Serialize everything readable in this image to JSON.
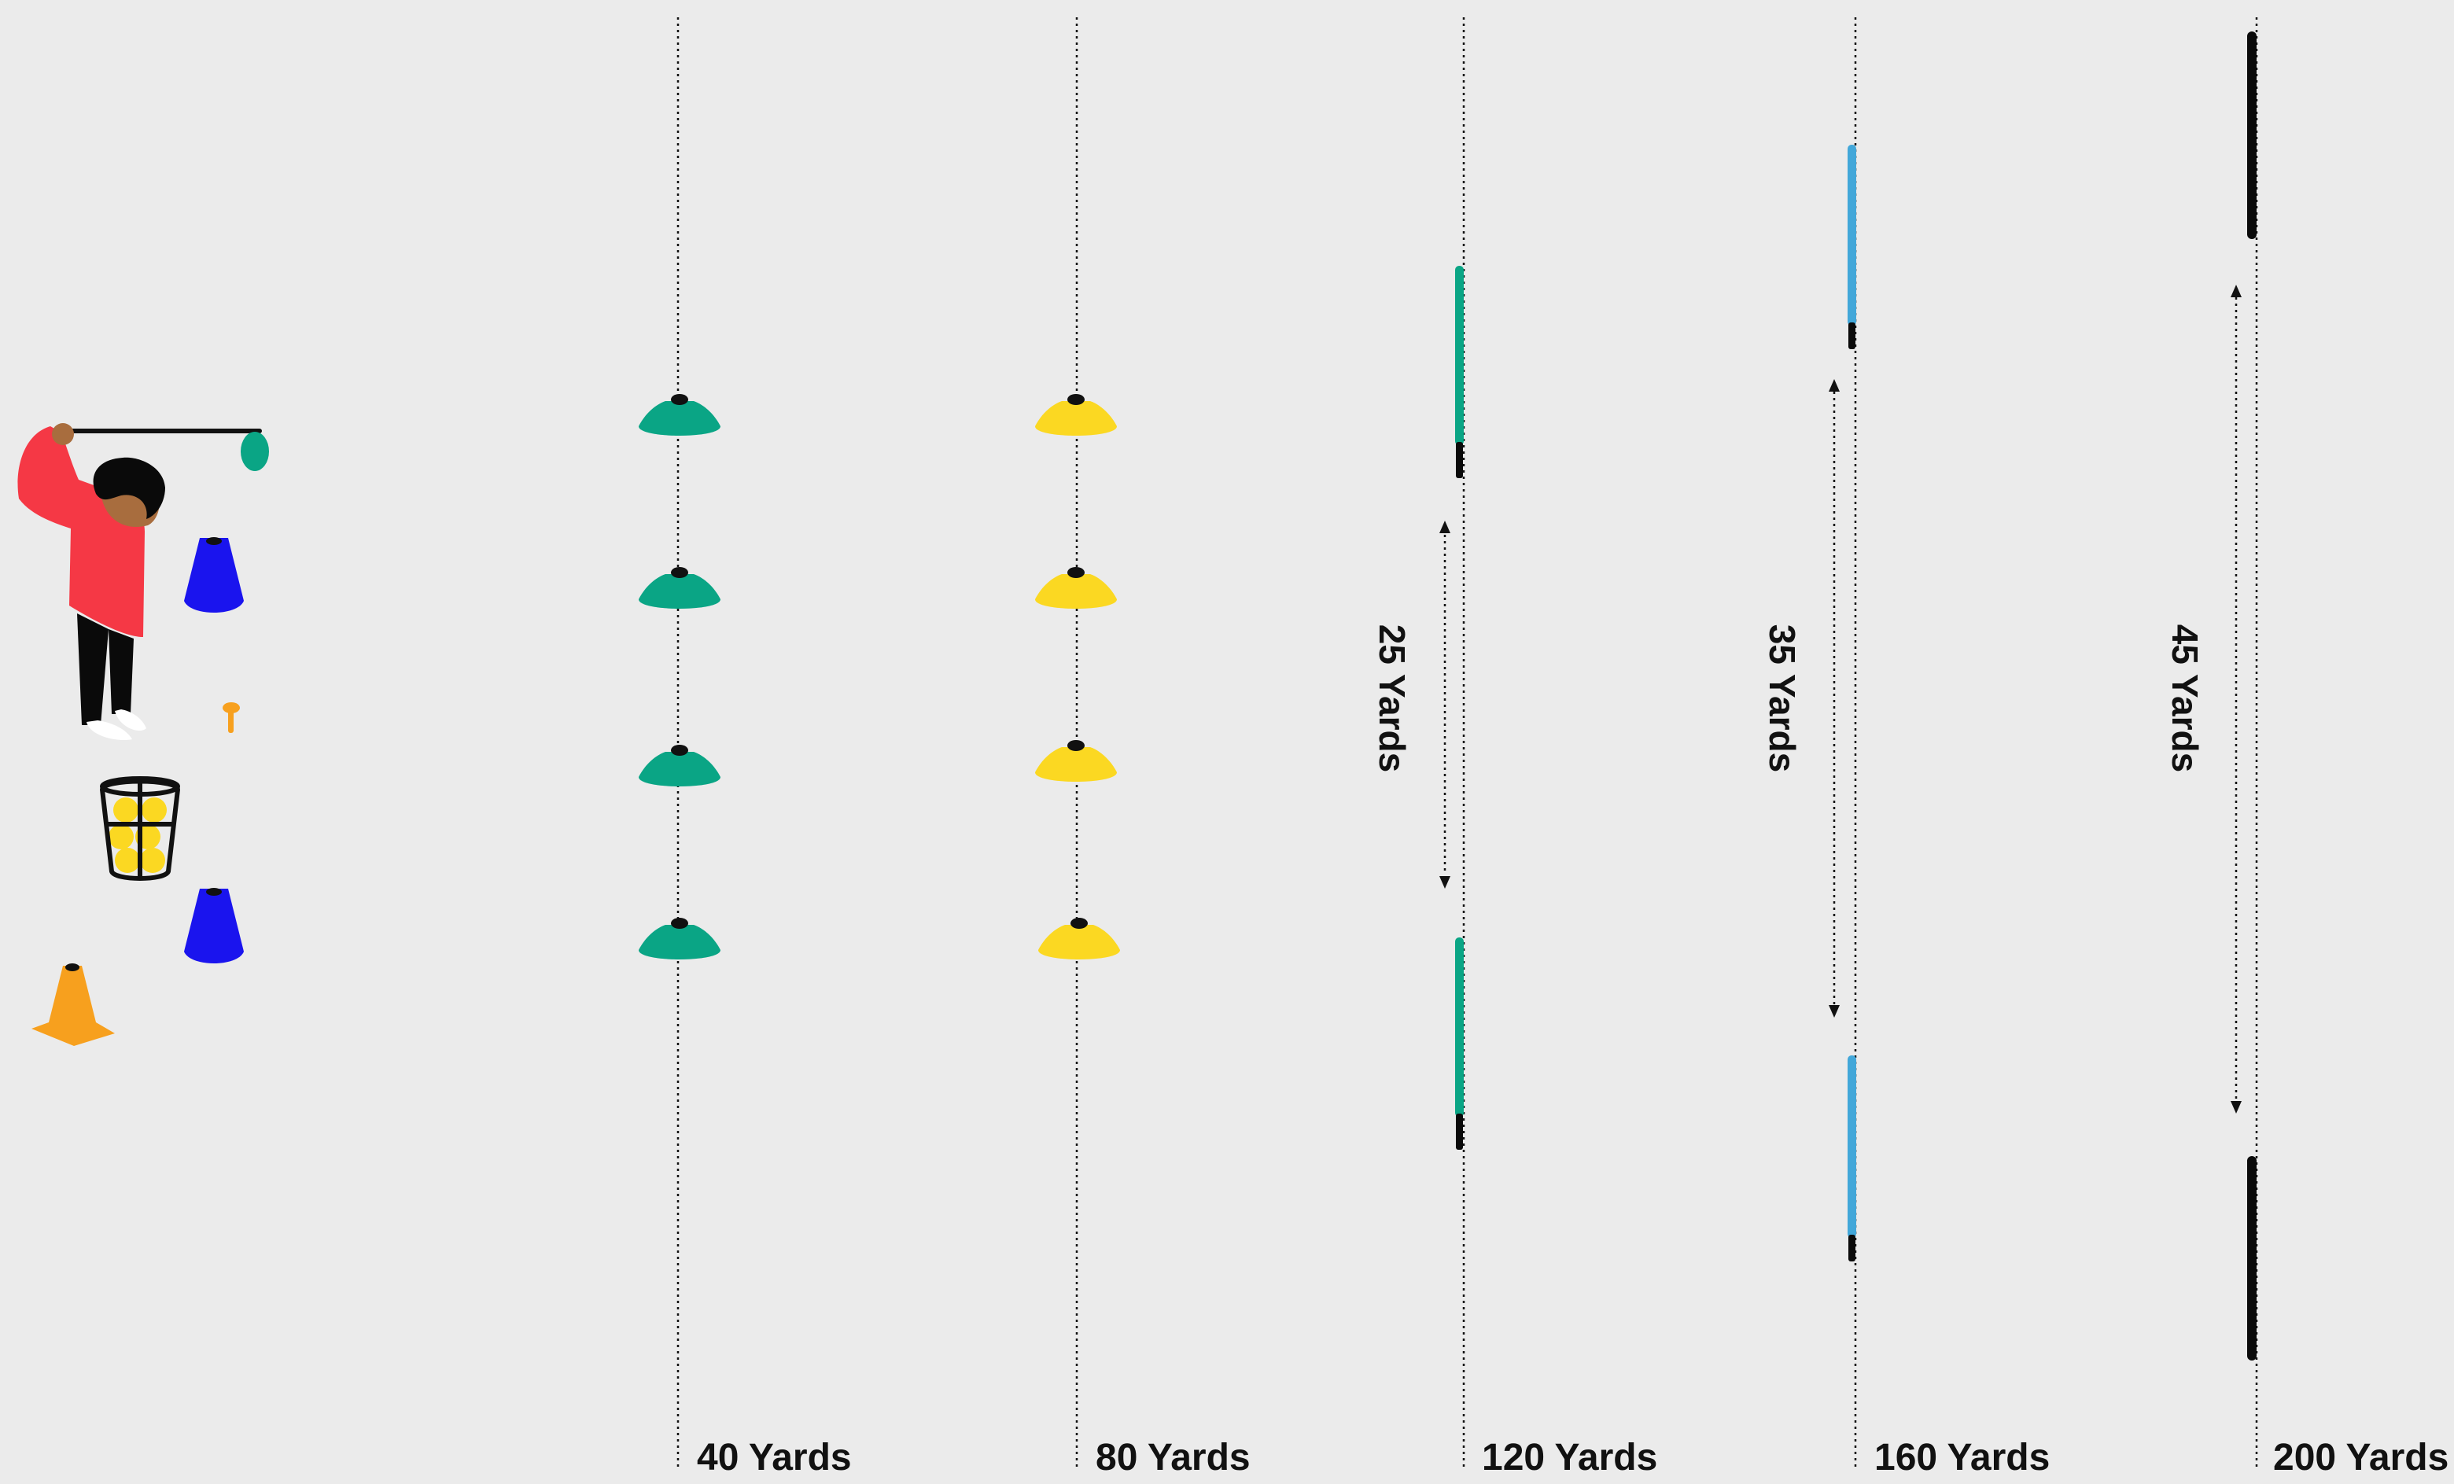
{
  "distance_markers": [
    {
      "label": "40 Yards",
      "cone_color": "#0aa585"
    },
    {
      "label": "80 Yards",
      "cone_color": "#fbd822"
    },
    {
      "label": "120 Yards",
      "pole_color": "#0aa585"
    },
    {
      "label": "160 Yards",
      "pole_color": "#42a7d9"
    },
    {
      "label": "200 Yards",
      "pole_color": "#0a0a0a"
    }
  ],
  "target_gaps": [
    {
      "label": "25 Yards"
    },
    {
      "label": "35 Yards"
    },
    {
      "label": "45 Yards"
    }
  ],
  "colors": {
    "background": "#ebebeb",
    "golfer_shirt": "#f53845",
    "golfer_skin": "#a86d3e",
    "blue_cone": "#1a14ee",
    "orange_cone": "#f7a01e",
    "ball_yellow": "#fbd822",
    "club_head": "#0aa585"
  },
  "icons": {
    "golfer": "golfer-icon",
    "basket": "ball-basket-icon",
    "tee": "golf-tee-icon",
    "blue_cone": "blue-cone-icon",
    "orange_cone": "orange-traffic-cone-icon"
  }
}
